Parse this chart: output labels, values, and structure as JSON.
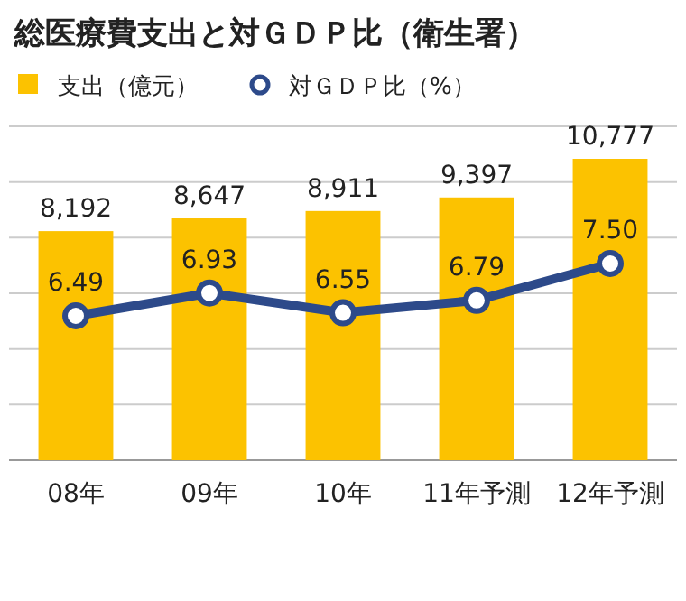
{
  "chart_data": {
    "type": "bar",
    "title": "総医療費支出と対ＧＤＰ比（衛生署）",
    "categories": [
      "08年",
      "09年",
      "10年",
      "11年予測",
      "12年予測"
    ],
    "series": [
      {
        "name": "支出（億元）",
        "color": "#fcc200",
        "values": [
          8192,
          8647,
          8911,
          9397,
          10777
        ],
        "value_labels": [
          "8,192",
          "8,647",
          "8,911",
          "9,397",
          "10,777"
        ]
      },
      {
        "name": "対ＧＤＰ比（%）",
        "type": "line",
        "axis": "y2",
        "color": "#2d4a8a",
        "values": [
          6.49,
          6.93,
          6.55,
          6.79,
          7.5
        ],
        "value_labels": [
          "6.49",
          "6.93",
          "6.55",
          "6.79",
          "7.50"
        ]
      }
    ],
    "tick_labels": "x",
    "grid": true,
    "legend": "top",
    "marker": "circle"
  }
}
